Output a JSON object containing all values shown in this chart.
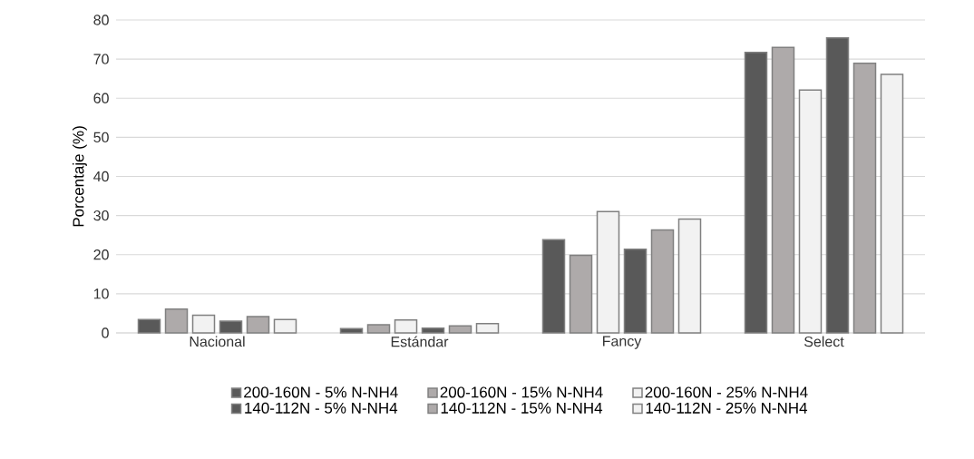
{
  "chart_data": {
    "type": "bar",
    "ylabel": "Porcentaje (%)",
    "categories": [
      "Nacional",
      "Estándar",
      "Fancy",
      "Select"
    ],
    "series": [
      {
        "name": "200-160N  -  5% N-NH4",
        "color": "#595959",
        "values": [
          3.4,
          1.1,
          23.8,
          71.7
        ]
      },
      {
        "name": "200-160N  -  15% N-NH4",
        "color": "#aeaaaa",
        "values": [
          6.1,
          2.1,
          19.8,
          73.0
        ]
      },
      {
        "name": "200-160N  -  25% N-NH4",
        "color": "#f2f2f2",
        "values": [
          4.5,
          3.3,
          31.0,
          62.1
        ]
      },
      {
        "name": "140-112N - 5% N-NH4",
        "color": "#595959",
        "values": [
          3.0,
          1.2,
          21.4,
          75.4
        ]
      },
      {
        "name": "140-112N - 15% N-NH4",
        "color": "#aeaaaa",
        "values": [
          4.2,
          1.8,
          26.3,
          68.9
        ]
      },
      {
        "name": "140-112N - 25% N-NH4",
        "color": "#f2f2f2",
        "values": [
          3.4,
          2.4,
          29.1,
          66.1
        ]
      }
    ],
    "ylim": [
      0,
      80
    ],
    "yticks": [
      0,
      10,
      20,
      30,
      40,
      50,
      60,
      70,
      80
    ],
    "grid": "y",
    "legend": "bottom"
  }
}
